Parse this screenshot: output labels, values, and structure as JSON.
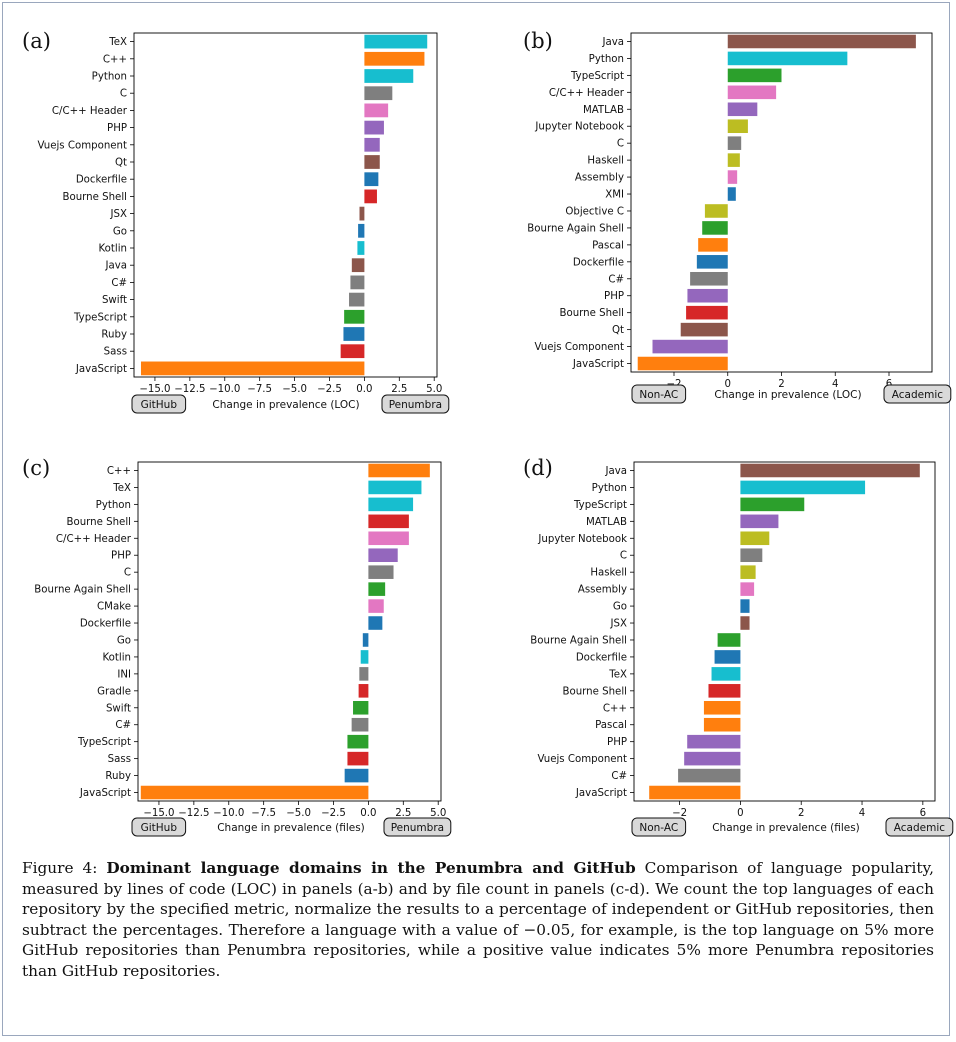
{
  "chart_data": [
    {
      "type": "bar",
      "orientation": "horizontal",
      "panel": "(a)",
      "xlabel": "Change in prevalence (LOC)",
      "xlim": [
        -16.5,
        5.2
      ],
      "xticks": [
        -15.0,
        -12.5,
        -10.0,
        -7.5,
        -5.0,
        -2.5,
        0.0,
        2.5,
        5.0
      ],
      "xtick_labels": [
        "−15.0",
        "−12.5",
        "−10.0",
        "−7.5",
        "−5.0",
        "−2.5",
        "0.0",
        "2.5",
        "5.0"
      ],
      "left_badge": "GitHub",
      "right_badge": "Penumbra",
      "categories": [
        "TeX",
        "C++",
        "Python",
        "C",
        "C/C++ Header",
        "PHP",
        "Vuejs Component",
        "Qt",
        "Dockerfile",
        "Bourne Shell",
        "JSX",
        "Go",
        "Kotlin",
        "Java",
        "C#",
        "Swift",
        "TypeScript",
        "Ruby",
        "Sass",
        "JavaScript"
      ],
      "values": [
        4.5,
        4.3,
        3.5,
        2.0,
        1.7,
        1.4,
        1.1,
        1.1,
        1.0,
        0.9,
        -0.35,
        -0.45,
        -0.5,
        -0.9,
        -1.0,
        -1.1,
        -1.45,
        -1.5,
        -1.7,
        -16.0
      ],
      "colors": [
        "#17becf",
        "#ff7f0e",
        "#17becf",
        "#7f7f7f",
        "#e377c2",
        "#9467bd",
        "#9467bd",
        "#8c564b",
        "#1f77b4",
        "#d62728",
        "#8c564b",
        "#1f77b4",
        "#17becf",
        "#8c564b",
        "#7f7f7f",
        "#7f7f7f",
        "#2ca02c",
        "#1f77b4",
        "#d62728",
        "#ff7f0e"
      ]
    },
    {
      "type": "bar",
      "orientation": "horizontal",
      "panel": "(b)",
      "xlabel": "Change in prevalence (LOC)",
      "xlim": [
        -3.6,
        7.6
      ],
      "xticks": [
        -2,
        0,
        2,
        4,
        6
      ],
      "xtick_labels": [
        "−2",
        "0",
        "2",
        "4",
        "6"
      ],
      "left_badge": "Non-AC",
      "right_badge": "Academic",
      "categories": [
        "Java",
        "Python",
        "TypeScript",
        "C/C++ Header",
        "MATLAB",
        "Jupyter Notebook",
        "C",
        "Haskell",
        "Assembly",
        "XMI",
        "Objective C",
        "Bourne Again Shell",
        "Pascal",
        "Dockerfile",
        "C#",
        "PHP",
        "Bourne Shell",
        "Qt",
        "Vuejs Component",
        "JavaScript"
      ],
      "values": [
        7.0,
        4.45,
        2.0,
        1.8,
        1.1,
        0.75,
        0.5,
        0.45,
        0.35,
        0.3,
        -0.85,
        -0.95,
        -1.1,
        -1.15,
        -1.4,
        -1.5,
        -1.55,
        -1.75,
        -2.8,
        -3.35
      ],
      "colors": [
        "#8c564b",
        "#17becf",
        "#2ca02c",
        "#e377c2",
        "#9467bd",
        "#bcbd22",
        "#7f7f7f",
        "#bcbd22",
        "#e377c2",
        "#1f77b4",
        "#bcbd22",
        "#2ca02c",
        "#ff7f0e",
        "#1f77b4",
        "#7f7f7f",
        "#9467bd",
        "#d62728",
        "#8c564b",
        "#9467bd",
        "#ff7f0e"
      ]
    },
    {
      "type": "bar",
      "orientation": "horizontal",
      "panel": "(c)",
      "xlabel": "Change in prevalence (files)",
      "xlim": [
        -16.5,
        5.2
      ],
      "xticks": [
        -15.0,
        -12.5,
        -10.0,
        -7.5,
        -5.0,
        -2.5,
        0.0,
        2.5,
        5.0
      ],
      "xtick_labels": [
        "−15.0",
        "−12.5",
        "−10.0",
        "−7.5",
        "−5.0",
        "−2.5",
        "0.0",
        "2.5",
        "5.0"
      ],
      "left_badge": "GitHub",
      "right_badge": "Penumbra",
      "categories": [
        "C++",
        "TeX",
        "Python",
        "Bourne Shell",
        "C/C++ Header",
        "PHP",
        "C",
        "Bourne Again Shell",
        "CMake",
        "Dockerfile",
        "Go",
        "Kotlin",
        "INI",
        "Gradle",
        "Swift",
        "C#",
        "TypeScript",
        "Sass",
        "Ruby",
        "JavaScript"
      ],
      "values": [
        4.4,
        3.8,
        3.2,
        2.9,
        2.9,
        2.1,
        1.8,
        1.2,
        1.1,
        1.0,
        -0.4,
        -0.55,
        -0.65,
        -0.7,
        -1.1,
        -1.2,
        -1.5,
        -1.5,
        -1.7,
        -16.3
      ],
      "colors": [
        "#ff7f0e",
        "#17becf",
        "#17becf",
        "#d62728",
        "#e377c2",
        "#9467bd",
        "#7f7f7f",
        "#2ca02c",
        "#e377c2",
        "#1f77b4",
        "#1f77b4",
        "#17becf",
        "#7f7f7f",
        "#d62728",
        "#2ca02c",
        "#7f7f7f",
        "#2ca02c",
        "#d62728",
        "#1f77b4",
        "#ff7f0e"
      ]
    },
    {
      "type": "bar",
      "orientation": "horizontal",
      "panel": "(d)",
      "xlabel": "Change in prevalence (files)",
      "xlim": [
        -3.5,
        6.4
      ],
      "xticks": [
        -2,
        0,
        2,
        4,
        6
      ],
      "xtick_labels": [
        "−2",
        "0",
        "2",
        "4",
        "6"
      ],
      "left_badge": "Non-AC",
      "right_badge": "Academic",
      "categories": [
        "Java",
        "Python",
        "TypeScript",
        "MATLAB",
        "Jupyter Notebook",
        "C",
        "Haskell",
        "Assembly",
        "Go",
        "JSX",
        "Bourne Again Shell",
        "Dockerfile",
        "TeX",
        "Bourne Shell",
        "C++",
        "Pascal",
        "PHP",
        "Vuejs Component",
        "C#",
        "JavaScript"
      ],
      "values": [
        5.9,
        4.1,
        2.1,
        1.25,
        0.95,
        0.72,
        0.5,
        0.45,
        0.3,
        0.3,
        -0.75,
        -0.85,
        -0.95,
        -1.05,
        -1.2,
        -1.2,
        -1.75,
        -1.85,
        -2.05,
        -3.0
      ],
      "colors": [
        "#8c564b",
        "#17becf",
        "#2ca02c",
        "#9467bd",
        "#bcbd22",
        "#7f7f7f",
        "#bcbd22",
        "#e377c2",
        "#1f77b4",
        "#8c564b",
        "#2ca02c",
        "#1f77b4",
        "#17becf",
        "#d62728",
        "#ff7f0e",
        "#ff7f0e",
        "#9467bd",
        "#9467bd",
        "#7f7f7f",
        "#ff7f0e"
      ]
    }
  ],
  "caption": {
    "prefix": "Figure 4: ",
    "bold_title": "Dominant language domains in the Penumbra and GitHub",
    "body": " Comparison of language popularity, measured by lines of code (LOC) in panels (a-b) and by file count in panels (c-d). We count the top languages of each repository by the specified metric, normalize the results to a percentage of independent or GitHub repositories, then subtract the percentages. Therefore a language with a value of −0.05, for example, is the top language on 5% more GitHub repositories than Penumbra repositories, while a positive value indicates 5% more Penumbra repositories than GitHub repositories."
  }
}
